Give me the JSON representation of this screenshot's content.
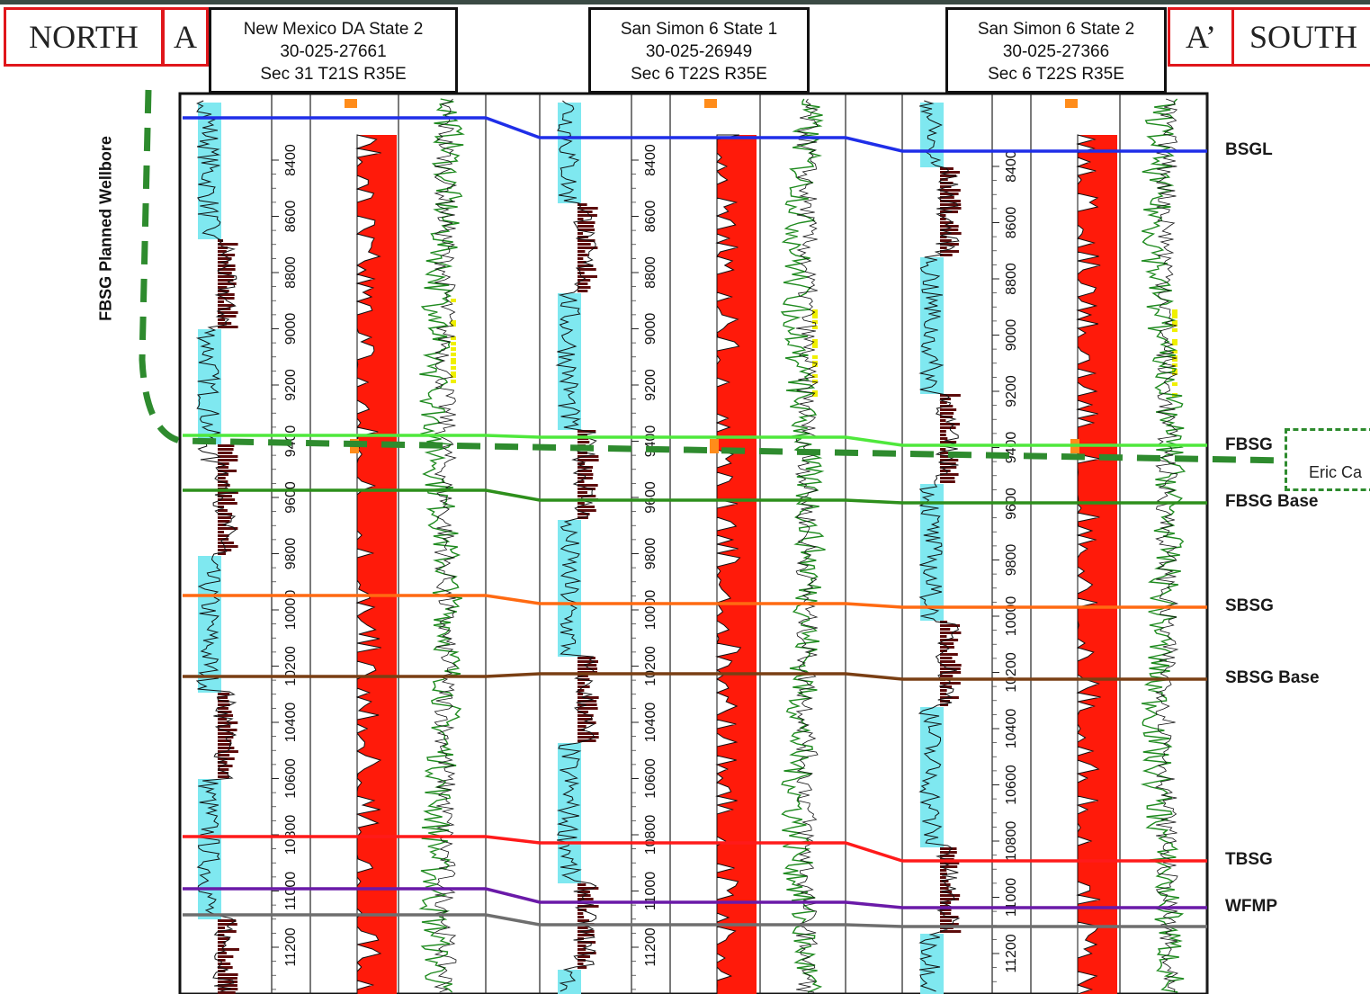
{
  "directions": {
    "left": {
      "name": "NORTH",
      "marker": "A"
    },
    "right": {
      "name": "SOUTH",
      "marker": "A’"
    }
  },
  "wells": [
    {
      "name": "New Mexico DA State 2",
      "api": "30-025-27661",
      "location": "Sec 31 T21S R35E"
    },
    {
      "name": "San Simon 6 State 1",
      "api": "30-025-26949",
      "location": "Sec 6 T22S R35E"
    },
    {
      "name": "San Simon 6 State 2",
      "api": "30-025-27366",
      "location": "Sec 6 T22S R35E"
    }
  ],
  "depth_labels": [
    "8400",
    "8600",
    "8800",
    "9000",
    "9200",
    "9400",
    "9600",
    "9800",
    "10000",
    "10200",
    "10400",
    "10600",
    "10800",
    "11000",
    "11200"
  ],
  "formations": [
    {
      "name": "BSGL",
      "color": "#1f2ee8"
    },
    {
      "name": "FBSG",
      "color": "#4fe83c"
    },
    {
      "name": "FBSG Base",
      "color": "#2d8f1b"
    },
    {
      "name": "SBSG",
      "color": "#ff6a12"
    },
    {
      "name": "SBSG Base",
      "color": "#7a3f14"
    },
    {
      "name": "TBSG",
      "color": "#ff1a1a"
    },
    {
      "name": "WFMP",
      "color": "#6a1aa8"
    },
    {
      "name": "",
      "color": "#6e6e6e"
    }
  ],
  "wellbore": {
    "label": "FBSG Planned Wellbore",
    "color": "#2e8b2e"
  },
  "callout": {
    "text": "Eric Ca"
  },
  "colors": {
    "gamma_fill": "#7fe8f0",
    "gamma_dark": "#5c0b0b",
    "resistivity_fill": "#ff1a0a",
    "resistivity_accent": "#ff8c1a",
    "porosity_curve": "#1e8a1e",
    "porosity_fill": "#f0f000"
  }
}
